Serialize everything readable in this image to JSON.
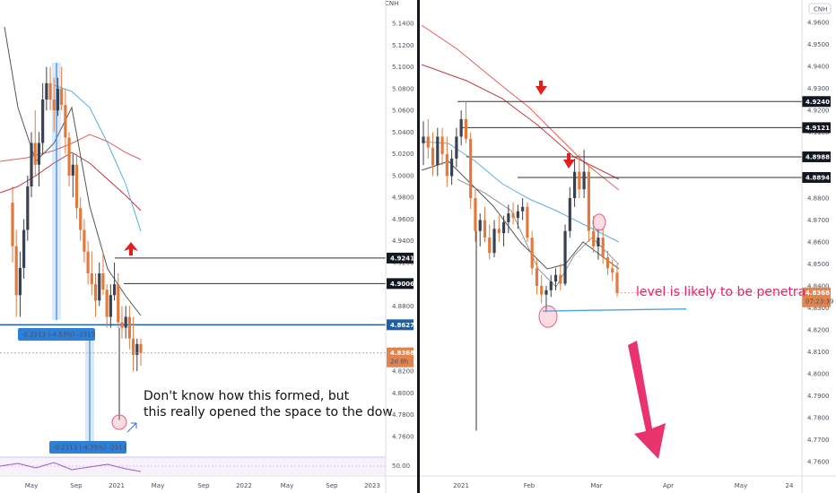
{
  "chart_data": [
    {
      "type": "candlestick",
      "symbol_label": "CNH",
      "y_ticks": [
        "5.1400",
        "5.1200",
        "5.1000",
        "5.0800",
        "5.0600",
        "5.0400",
        "5.0200",
        "5.0000",
        "4.9800",
        "4.9600",
        "4.9400",
        "4.9200",
        "4.9000",
        "4.8800",
        "4.8600",
        "4.8400",
        "4.8200",
        "4.8000",
        "4.7800",
        "4.7600"
      ],
      "ylim": [
        4.745,
        5.155
      ],
      "x_ticks": [
        "May",
        "Sep",
        "2021",
        "May",
        "Sep",
        "2022",
        "May",
        "Sep",
        "2023"
      ],
      "levels": [
        {
          "label": "4.9241",
          "value": 4.9241
        },
        {
          "label": "4.9006",
          "value": 4.9006
        },
        {
          "label": "4.8627",
          "value": 4.8627
        }
      ],
      "last_price": {
        "label": "4.8368",
        "value": 4.8368,
        "countdown": "2d 8h"
      },
      "measures": [
        {
          "label": "-0.2313 (-4.53%) -2313"
        },
        {
          "label": "-0.2313 (-4.75%) -2313"
        }
      ],
      "oscillator_tick": "50.00",
      "annotation_lines": [
        "Don't know how this formed, but",
        "this really opened the space to the dow"
      ],
      "candles": [
        [
          4.975,
          4.99,
          4.92,
          4.935
        ],
        [
          4.935,
          4.95,
          4.87,
          4.89
        ],
        [
          4.89,
          4.93,
          4.87,
          4.915
        ],
        [
          4.915,
          4.96,
          4.905,
          4.95
        ],
        [
          4.95,
          5.0,
          4.94,
          4.99
        ],
        [
          4.99,
          5.04,
          4.98,
          5.03
        ],
        [
          5.03,
          5.06,
          5.0,
          5.01
        ],
        [
          5.01,
          5.04,
          4.99,
          5.03
        ],
        [
          5.03,
          5.085,
          5.02,
          5.07
        ],
        [
          5.07,
          5.1,
          5.06,
          5.085
        ],
        [
          5.085,
          5.1,
          5.06,
          5.07
        ],
        [
          5.07,
          5.09,
          5.04,
          5.06
        ],
        [
          5.06,
          5.09,
          5.055,
          5.08
        ],
        [
          5.08,
          5.1,
          5.06,
          5.065
        ],
        [
          5.065,
          5.08,
          5.02,
          5.035
        ],
        [
          5.035,
          5.04,
          4.99,
          5.0
        ],
        [
          5.0,
          5.02,
          4.98,
          5.01
        ],
        [
          5.01,
          5.02,
          4.96,
          4.97
        ],
        [
          4.97,
          4.98,
          4.94,
          4.95
        ],
        [
          4.95,
          4.96,
          4.92,
          4.93
        ],
        [
          4.93,
          4.94,
          4.9,
          4.91
        ],
        [
          4.91,
          4.93,
          4.89,
          4.9
        ],
        [
          4.9,
          4.91,
          4.87,
          4.885
        ],
        [
          4.885,
          4.92,
          4.88,
          4.91
        ],
        [
          4.91,
          4.93,
          4.89,
          4.895
        ],
        [
          4.895,
          4.9,
          4.86,
          4.87
        ],
        [
          4.87,
          4.9,
          4.86,
          4.89
        ],
        [
          4.89,
          4.92,
          4.885,
          4.9
        ],
        [
          4.9,
          4.91,
          4.86,
          4.865
        ],
        [
          4.865,
          4.88,
          4.85,
          4.86
        ],
        [
          4.86,
          4.88,
          4.85,
          4.87
        ],
        [
          4.87,
          4.88,
          4.84,
          4.85
        ],
        [
          4.85,
          4.87,
          4.82,
          4.835
        ],
        [
          4.835,
          4.85,
          4.82,
          4.845
        ],
        [
          4.845,
          4.85,
          4.825,
          4.8368
        ]
      ]
    },
    {
      "type": "candlestick",
      "symbol_label": "CNH",
      "y_ticks": [
        "4.9600",
        "4.9500",
        "4.9400",
        "4.9300",
        "4.9200",
        "4.9100",
        "4.9000",
        "4.8900",
        "4.8800",
        "4.8700",
        "4.8600",
        "4.8500",
        "4.8400",
        "4.8300",
        "4.8200",
        "4.8100",
        "4.8000",
        "4.7900",
        "4.7800",
        "4.7700",
        "4.7600"
      ],
      "ylim": [
        4.755,
        4.967
      ],
      "x_ticks": [
        "2021",
        "Feb",
        "Mar",
        "Apr",
        "May",
        "24"
      ],
      "levels": [
        {
          "label": "4.9240",
          "value": 4.924
        },
        {
          "label": "4.9121",
          "value": 4.9121
        },
        {
          "label": "4.8988",
          "value": 4.8988
        },
        {
          "label": "4.8894",
          "value": 4.8894
        }
      ],
      "last_price": {
        "label": "4.8368",
        "value": 4.8368,
        "countdown": "07:23:39"
      },
      "annotation_lines": [
        "level is likely to be penetra"
      ],
      "candles": [
        [
          4.905,
          4.915,
          4.895,
          4.908
        ],
        [
          4.908,
          4.916,
          4.898,
          4.903
        ],
        [
          4.903,
          4.91,
          4.89,
          4.895
        ],
        [
          4.895,
          4.912,
          4.89,
          4.908
        ],
        [
          4.908,
          4.912,
          4.895,
          4.9
        ],
        [
          4.9,
          4.908,
          4.885,
          4.89
        ],
        [
          4.89,
          4.902,
          4.886,
          4.898
        ],
        [
          4.898,
          4.912,
          4.894,
          4.908
        ],
        [
          4.908,
          4.92,
          4.904,
          4.916
        ],
        [
          4.916,
          4.924,
          4.905,
          4.907
        ],
        [
          4.907,
          4.91,
          4.875,
          4.88
        ],
        [
          4.88,
          4.885,
          4.86,
          4.865
        ],
        [
          4.865,
          4.873,
          4.858,
          4.87
        ],
        [
          4.87,
          4.876,
          4.86,
          4.862
        ],
        [
          4.862,
          4.868,
          4.852,
          4.855
        ],
        [
          4.855,
          4.87,
          4.853,
          4.866
        ],
        [
          4.866,
          4.872,
          4.86,
          4.864
        ],
        [
          4.864,
          4.872,
          4.858,
          4.869
        ],
        [
          4.869,
          4.877,
          4.864,
          4.873
        ],
        [
          4.873,
          4.878,
          4.868,
          4.871
        ],
        [
          4.871,
          4.877,
          4.866,
          4.874
        ],
        [
          4.874,
          4.88,
          4.87,
          4.876
        ],
        [
          4.876,
          4.878,
          4.86,
          4.862
        ],
        [
          4.862,
          4.865,
          4.845,
          4.848
        ],
        [
          4.848,
          4.852,
          4.836,
          4.84
        ],
        [
          4.84,
          4.845,
          4.832,
          4.836
        ],
        [
          4.836,
          4.84,
          4.828,
          4.838
        ],
        [
          4.838,
          4.845,
          4.835,
          4.842
        ],
        [
          4.842,
          4.848,
          4.838,
          4.845
        ],
        [
          4.845,
          4.85,
          4.838,
          4.841
        ],
        [
          4.841,
          4.868,
          4.84,
          4.865
        ],
        [
          4.865,
          4.885,
          4.862,
          4.88
        ],
        [
          4.88,
          4.898,
          4.876,
          4.892
        ],
        [
          4.892,
          4.9,
          4.88,
          4.884
        ],
        [
          4.884,
          4.902,
          4.88,
          4.892
        ],
        [
          4.892,
          4.895,
          4.86,
          4.865
        ],
        [
          4.865,
          4.872,
          4.855,
          4.858
        ],
        [
          4.858,
          4.866,
          4.852,
          4.862
        ],
        [
          4.862,
          4.866,
          4.85,
          4.853
        ],
        [
          4.853,
          4.856,
          4.845,
          4.848
        ],
        [
          4.848,
          4.852,
          4.842,
          4.846
        ],
        [
          4.846,
          4.85,
          4.835,
          4.8368
        ]
      ]
    }
  ]
}
